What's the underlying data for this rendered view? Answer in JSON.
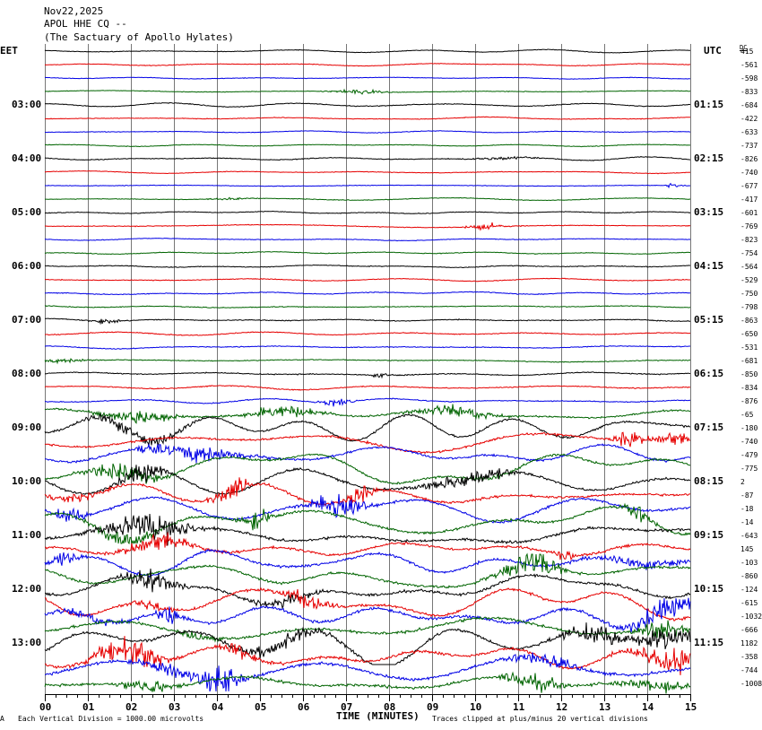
{
  "header": {
    "date": "Nov22,2025",
    "station": "APOL HHE CQ --",
    "site": "(The Sactuary of Apollo Hylates)"
  },
  "labels": {
    "left_tz": "EET",
    "right_tz": "UTC",
    "dc": "DC"
  },
  "footer": {
    "logo_mark": "A",
    "scale_note": "Each Vertical Division = 1000.00 microvolts",
    "clip_note": "Traces clipped at plus/minus 20 vertical divisions"
  },
  "chart_data": {
    "type": "line",
    "title": "",
    "xlabel": "TIME (MINUTES)",
    "ylabel": "",
    "xlim": [
      0,
      15
    ],
    "x_ticks": [
      "00",
      "01",
      "02",
      "03",
      "04",
      "05",
      "06",
      "07",
      "08",
      "09",
      "10",
      "11",
      "12",
      "13",
      "14",
      "15"
    ],
    "grid": true,
    "trace_colors": [
      "#000000",
      "#e60000",
      "#0000e6",
      "#006400"
    ],
    "left_time_labels": [
      "03:00",
      "04:00",
      "05:00",
      "06:00",
      "07:00",
      "08:00",
      "09:00",
      "10:00",
      "11:00",
      "12:00",
      "13:00"
    ],
    "right_time_labels": [
      "01:15",
      "02:15",
      "03:15",
      "04:15",
      "05:15",
      "06:15",
      "07:15",
      "08:15",
      "09:15",
      "10:15",
      "11:15"
    ],
    "dc_offsets": [
      "415",
      "-561",
      "-598",
      "-833",
      "-684",
      "-422",
      "-633",
      "-737",
      "-826",
      "-740",
      "-677",
      "-417",
      "-601",
      "-769",
      "-823",
      "-754",
      "-564",
      "-529",
      "-750",
      "-798",
      "-863",
      "-650",
      "-531",
      "-681",
      "-850",
      "-834",
      "-876",
      "-65",
      "-180",
      "-740",
      "-479",
      "-775",
      "2",
      "-87",
      "-18",
      "-14",
      "-643",
      "145",
      "-103",
      "-860",
      "-124",
      "-615",
      "-1032",
      "-666",
      "1182",
      "-358",
      "-744",
      "-1008"
    ],
    "activity": [
      0.5,
      0.5,
      0.45,
      0.5,
      0.6,
      0.55,
      0.5,
      0.5,
      0.6,
      0.55,
      0.5,
      0.5,
      0.6,
      0.6,
      0.55,
      0.55,
      0.65,
      0.6,
      0.65,
      0.65,
      0.7,
      0.7,
      0.65,
      0.7,
      0.8,
      0.8,
      0.8,
      1.4,
      1.7,
      1.7,
      1.8,
      1.8,
      1.9,
      1.9,
      2.0,
      2.0,
      2.1,
      2.1,
      2.1,
      2.1,
      2.2,
      2.2,
      2.3,
      2.3,
      2.3,
      2.3,
      2.3,
      2.3
    ]
  }
}
